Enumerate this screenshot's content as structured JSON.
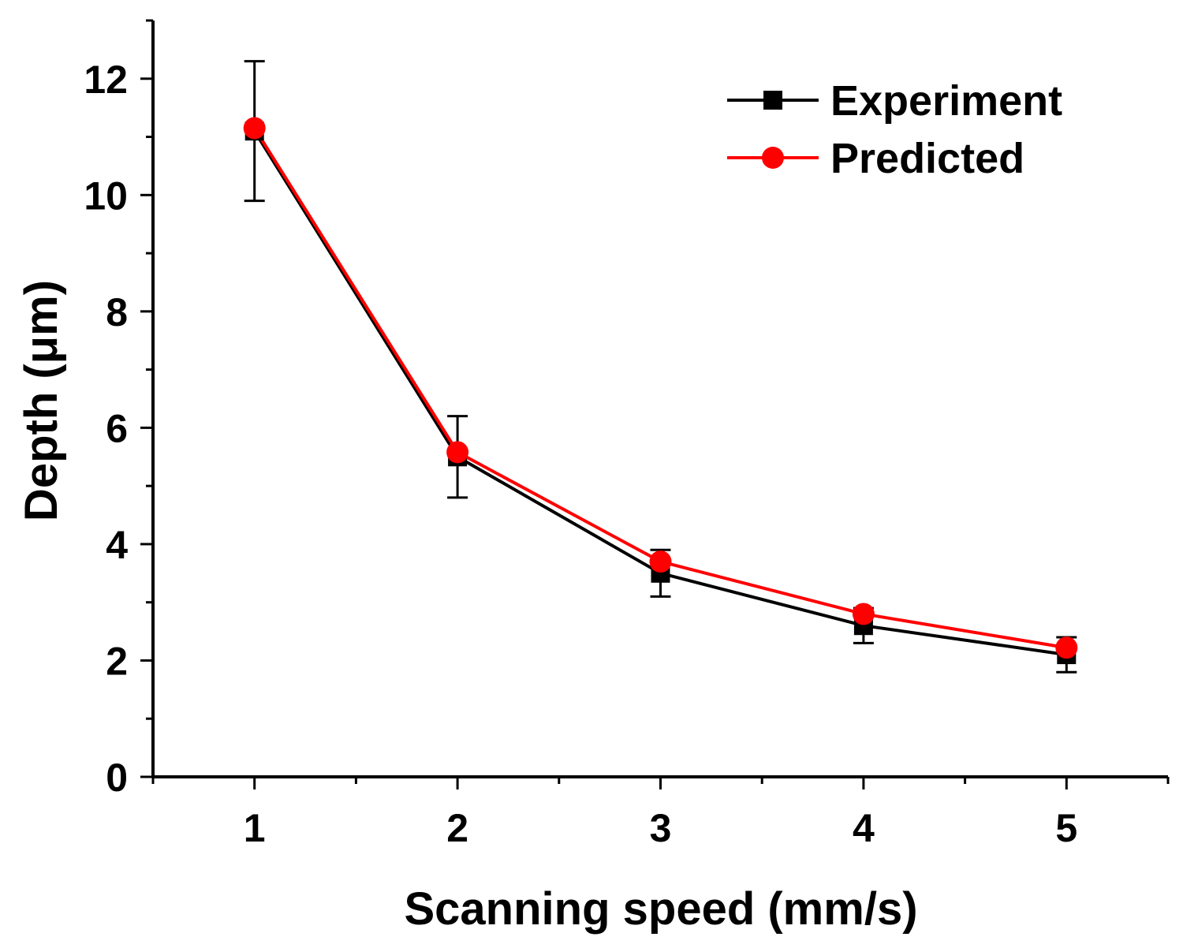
{
  "chart_data": {
    "type": "line",
    "title": "",
    "xlabel": "Scanning speed (mm/s)",
    "ylabel": "Depth (μm)",
    "xlim": [
      0.5,
      5.5
    ],
    "ylim": [
      0,
      13
    ],
    "xticks": [
      1,
      2,
      3,
      4,
      5
    ],
    "yticks": [
      0,
      2,
      4,
      6,
      8,
      10,
      12
    ],
    "grid": false,
    "legend_position": "top-right",
    "series": [
      {
        "name": "Experiment",
        "color": "#000000",
        "marker": "square",
        "x": [
          1,
          2,
          3,
          4,
          5
        ],
        "y": [
          11.1,
          5.5,
          3.5,
          2.6,
          2.1
        ],
        "yerr": [
          1.2,
          0.7,
          0.4,
          0.3,
          0.3
        ]
      },
      {
        "name": "Predicted",
        "color": "#ff0000",
        "marker": "circle",
        "x": [
          1,
          2,
          3,
          4,
          5
        ],
        "y": [
          11.15,
          5.58,
          3.7,
          2.8,
          2.22
        ]
      }
    ]
  }
}
